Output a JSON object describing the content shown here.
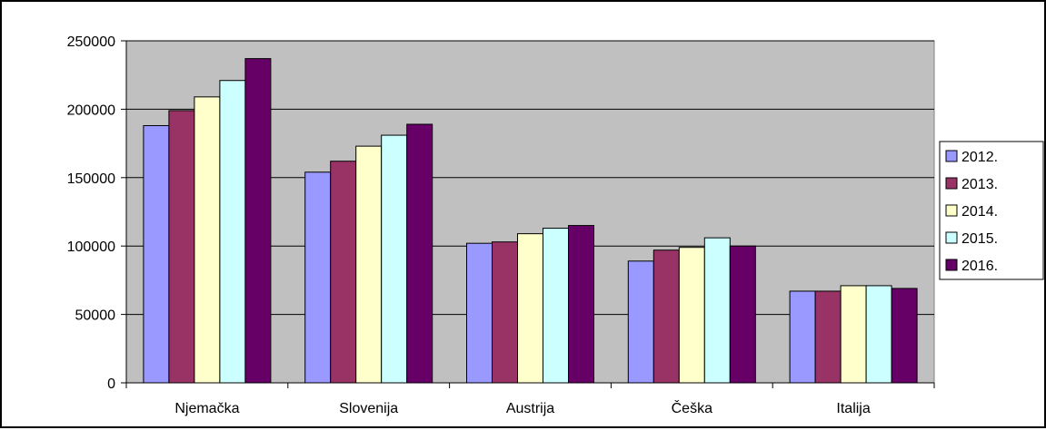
{
  "chart_data": {
    "type": "bar",
    "categories": [
      "Njemačka",
      "Slovenija",
      "Austrija",
      "Češka",
      "Italija"
    ],
    "series": [
      {
        "name": "2012.",
        "color": "#9999FF",
        "values": [
          188000,
          154000,
          102000,
          89000,
          67000
        ]
      },
      {
        "name": "2013.",
        "color": "#993366",
        "values": [
          199000,
          162000,
          103000,
          97000,
          67000
        ]
      },
      {
        "name": "2014.",
        "color": "#FFFFCC",
        "values": [
          209000,
          173000,
          109000,
          99000,
          71000
        ]
      },
      {
        "name": "2015.",
        "color": "#CCFFFF",
        "values": [
          221000,
          181000,
          113000,
          106000,
          71000
        ]
      },
      {
        "name": "2016.",
        "color": "#660066",
        "values": [
          237000,
          189000,
          115000,
          100000,
          69000
        ]
      }
    ],
    "y_ticks": [
      "0",
      "50000",
      "100000",
      "150000",
      "200000",
      "250000"
    ],
    "ylim": [
      0,
      250000
    ],
    "grid": true,
    "plot_background": "#C0C0C0",
    "legend_position": "right",
    "title": "",
    "xlabel": "",
    "ylabel": ""
  }
}
